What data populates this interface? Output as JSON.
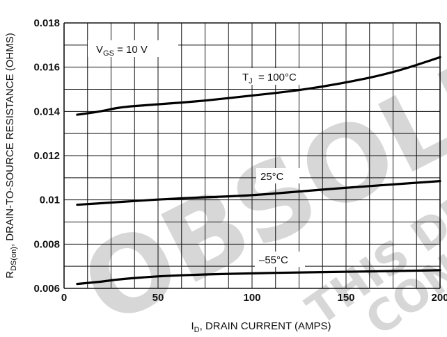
{
  "chart_data": {
    "type": "line",
    "title": "",
    "xlabel": {
      "main": "I",
      "sub": "D",
      "rest": ", DRAIN CURRENT (AMPS)"
    },
    "ylabel": {
      "main": "R",
      "sub": "DS(on)",
      "rest": ", DRAIN-TO-SOURCE RESISTANCE (OHMS)"
    },
    "xlim": [
      0,
      200
    ],
    "ylim": [
      0.006,
      0.018
    ],
    "x_ticks": [
      0,
      50,
      100,
      150,
      200
    ],
    "x_tick_labels": [
      "0",
      "50",
      "100",
      "150",
      "200"
    ],
    "y_ticks": [
      0.006,
      0.008,
      0.01,
      0.012,
      0.014,
      0.016,
      0.018
    ],
    "y_tick_labels": [
      "0.006",
      "0.008",
      "0.01",
      "0.012",
      "0.014",
      "0.016",
      "0.018"
    ],
    "grid": true,
    "annotation": {
      "main": "V",
      "sub": "GS",
      "rest": " = 10 V"
    },
    "series": [
      {
        "name": "100°C",
        "label_main": "T",
        "label_sub": "J",
        "label_rest": "  = 100°C",
        "color": "#000000",
        "points": [
          [
            7,
            0.01385
          ],
          [
            20,
            0.014
          ],
          [
            30,
            0.0142
          ],
          [
            50,
            0.01432
          ],
          [
            75,
            0.01448
          ],
          [
            100,
            0.01472
          ],
          [
            125,
            0.01495
          ],
          [
            150,
            0.0153
          ],
          [
            175,
            0.01575
          ],
          [
            200,
            0.01645
          ]
        ]
      },
      {
        "name": "25°C",
        "label_main": "25°C",
        "label_sub": "",
        "label_rest": "",
        "color": "#000000",
        "points": [
          [
            7,
            0.00978
          ],
          [
            25,
            0.00988
          ],
          [
            50,
            0.01002
          ],
          [
            75,
            0.01012
          ],
          [
            100,
            0.0102
          ],
          [
            125,
            0.01038
          ],
          [
            150,
            0.01055
          ],
          [
            175,
            0.0107
          ],
          [
            200,
            0.01085
          ]
        ]
      },
      {
        "name": "-55°C",
        "label_main": "–55°C",
        "label_sub": "",
        "label_rest": "",
        "color": "#000000",
        "points": [
          [
            7,
            0.0062
          ],
          [
            20,
            0.0063
          ],
          [
            30,
            0.00642
          ],
          [
            50,
            0.00655
          ],
          [
            75,
            0.00663
          ],
          [
            100,
            0.00668
          ],
          [
            125,
            0.00672
          ],
          [
            150,
            0.00675
          ],
          [
            175,
            0.00678
          ],
          [
            200,
            0.00682
          ]
        ]
      }
    ],
    "watermarks": [
      "OBSOLETE",
      "THIS DEVICE",
      "CONTACT"
    ],
    "watermark_color": "#d7d7d7"
  }
}
